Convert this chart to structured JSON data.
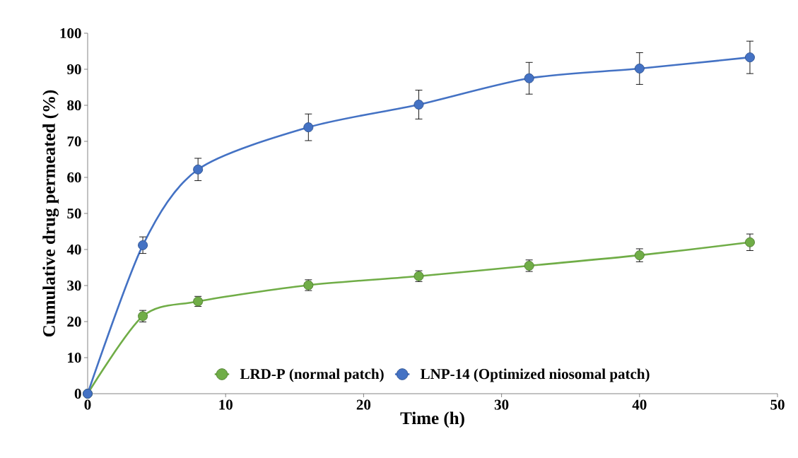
{
  "chart_data": {
    "type": "line",
    "xlabel": "Time (h)",
    "ylabel": "Cumulative drug permeated (%)",
    "x": [
      0,
      4,
      8,
      16,
      24,
      32,
      40,
      48
    ],
    "series": [
      {
        "name": "LRD-P (normal patch)",
        "color": "#70ad47",
        "values": [
          0,
          21.5,
          25.6,
          30.1,
          32.6,
          35.5,
          38.4,
          42
        ],
        "errors": [
          null,
          1.6,
          1.4,
          1.5,
          1.5,
          1.6,
          1.8,
          2.3
        ]
      },
      {
        "name": "LNP-14  (Optimized niosomal patch)",
        "color": "#4472c4",
        "values": [
          0,
          41.2,
          62.2,
          73.9,
          80.2,
          87.5,
          90.2,
          93.3
        ],
        "errors": [
          null,
          2.3,
          3.1,
          3.7,
          4.0,
          4.4,
          4.4,
          4.5
        ]
      }
    ],
    "xlim": [
      0,
      50
    ],
    "xticks": [
      0,
      10,
      20,
      30,
      40,
      50
    ],
    "ylim": [
      0,
      100
    ],
    "yticks": [
      0,
      10,
      20,
      30,
      40,
      50,
      60,
      70,
      80,
      90,
      100
    ],
    "grid": false,
    "legend": "bottom",
    "marker": "circle",
    "line_style": "solid"
  }
}
